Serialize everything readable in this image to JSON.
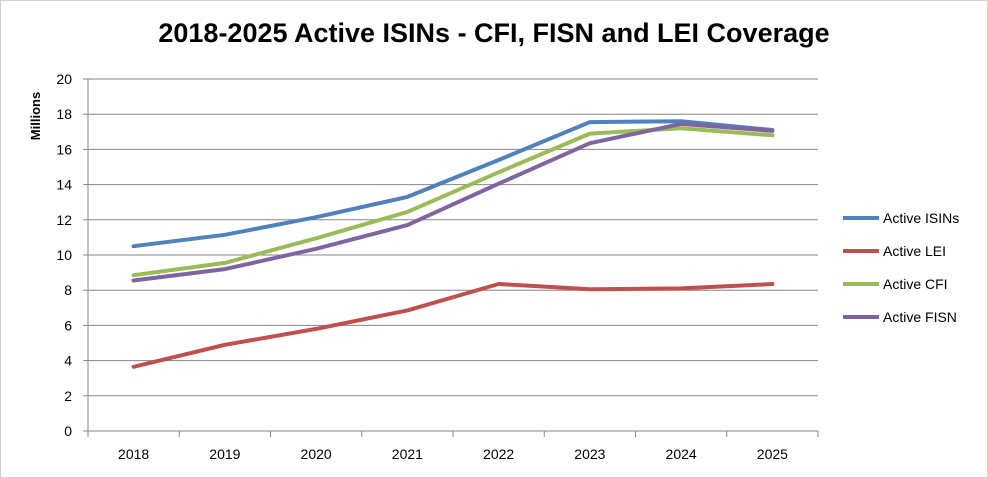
{
  "chart_data": {
    "type": "line",
    "title": "2018-2025 Active ISINs - CFI, FISN and LEI Coverage",
    "ylabel": "Millions",
    "xlabel": "",
    "ylim": [
      0,
      20
    ],
    "yticks": [
      0,
      2,
      4,
      6,
      8,
      10,
      12,
      14,
      16,
      18,
      20
    ],
    "categories": [
      "2018",
      "2019",
      "2020",
      "2021",
      "2022",
      "2023",
      "2024",
      "2025"
    ],
    "grid": true,
    "legend_position": "right",
    "series": [
      {
        "name": "Active ISINs",
        "color": "#4f81bd",
        "values": [
          10.5,
          11.15,
          12.15,
          13.3,
          15.4,
          17.55,
          17.6,
          17.1
        ]
      },
      {
        "name": "Active LEI",
        "color": "#c0504d",
        "values": [
          3.65,
          4.9,
          5.8,
          6.85,
          8.35,
          8.05,
          8.1,
          8.35
        ]
      },
      {
        "name": "Active CFI",
        "color": "#9bbb59",
        "values": [
          8.85,
          9.55,
          10.95,
          12.45,
          14.7,
          16.9,
          17.2,
          16.8
        ]
      },
      {
        "name": "Active FISN",
        "color": "#8064a2",
        "values": [
          8.55,
          9.2,
          10.35,
          11.7,
          14.05,
          16.35,
          17.45,
          17.05
        ]
      }
    ]
  }
}
